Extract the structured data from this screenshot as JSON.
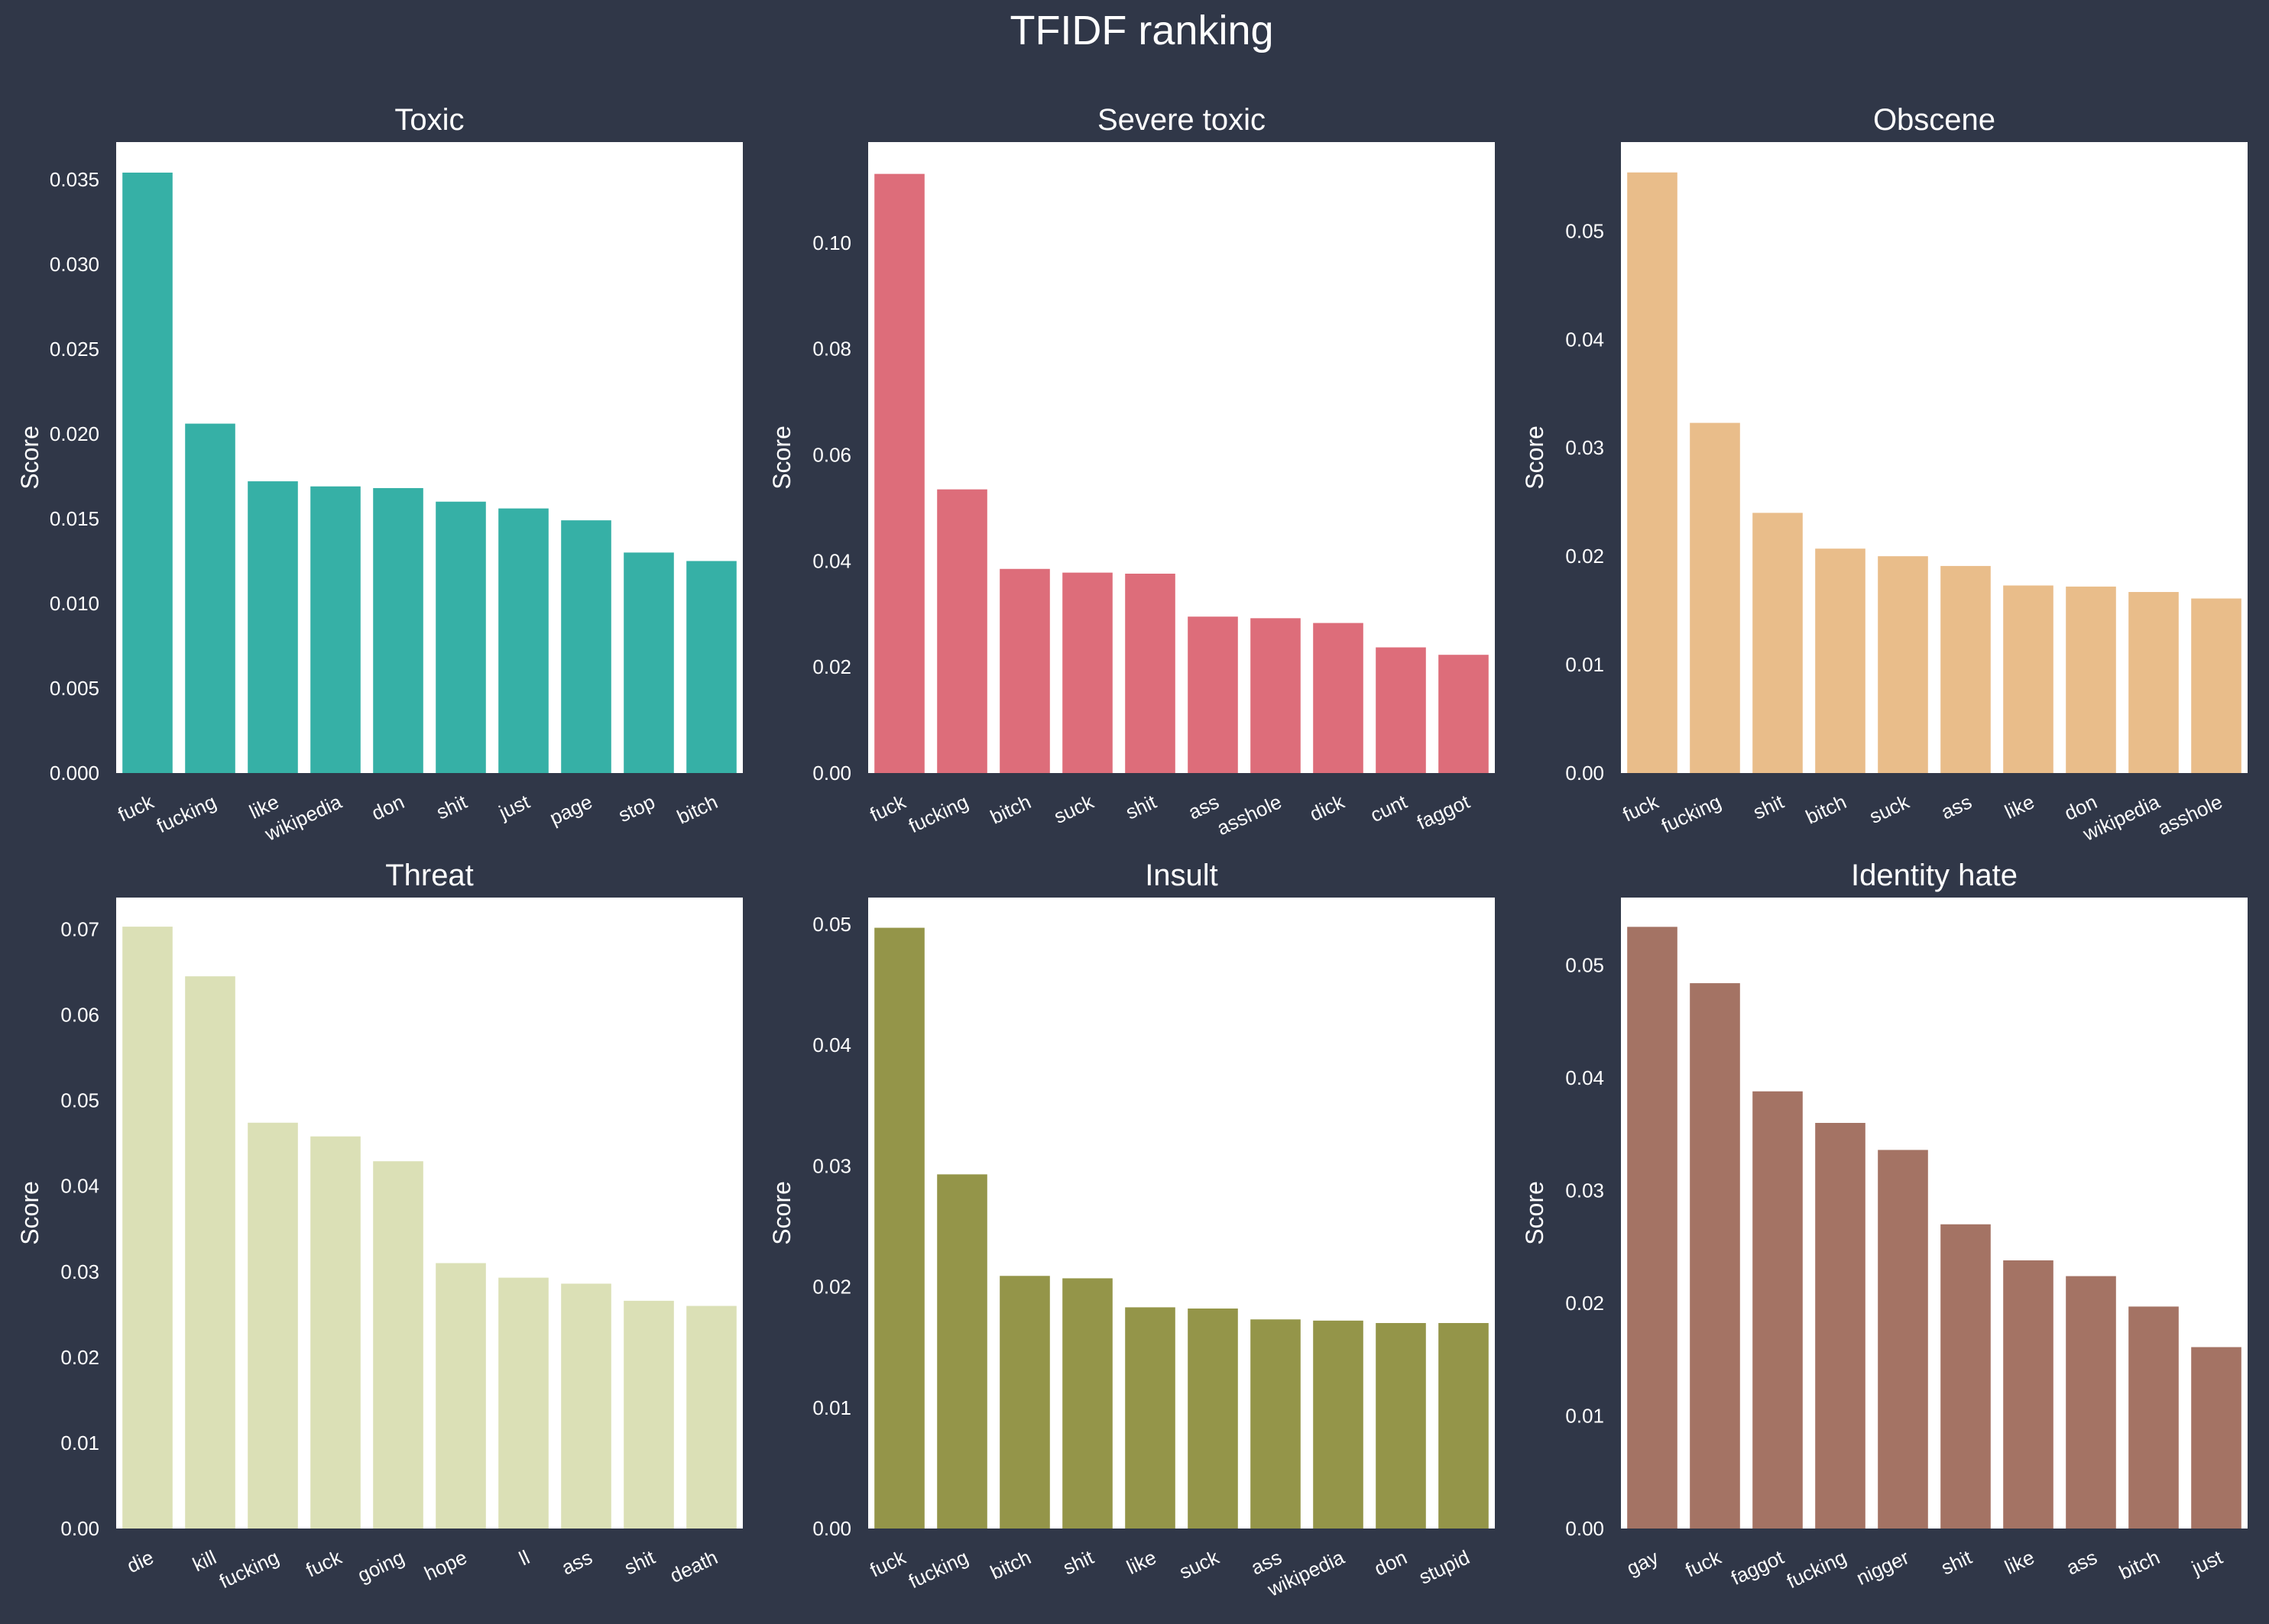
{
  "figure": {
    "title": "TFIDF ranking",
    "background": "#303748",
    "panel_background": "#ffffff",
    "text_color": "#ffffff"
  },
  "chart_data": [
    {
      "type": "bar",
      "title": "Toxic",
      "ylabel": "Score",
      "xlabel": "",
      "color": "#36b0a6",
      "ylim": [
        0,
        0.0372
      ],
      "yticks": [
        "0.000",
        "0.005",
        "0.010",
        "0.015",
        "0.020",
        "0.025",
        "0.030",
        "0.035"
      ],
      "yticks_values": [
        0,
        0.005,
        0.01,
        0.015,
        0.02,
        0.025,
        0.03,
        0.035
      ],
      "categories": [
        "fuck",
        "fucking",
        "like",
        "wikipedia",
        "don",
        "shit",
        "just",
        "page",
        "stop",
        "bitch"
      ],
      "values": [
        0.0354,
        0.0206,
        0.0172,
        0.0169,
        0.0168,
        0.016,
        0.0156,
        0.0149,
        0.013,
        0.0125
      ]
    },
    {
      "type": "bar",
      "title": "Severe toxic",
      "ylabel": "Score",
      "xlabel": "",
      "color": "#dd6d7a",
      "ylim": [
        0,
        0.119
      ],
      "yticks": [
        "0.00",
        "0.02",
        "0.04",
        "0.06",
        "0.08",
        "0.10"
      ],
      "yticks_values": [
        0,
        0.02,
        0.04,
        0.06,
        0.08,
        0.1
      ],
      "categories": [
        "fuck",
        "fucking",
        "bitch",
        "suck",
        "shit",
        "ass",
        "asshole",
        "dick",
        "cunt",
        "faggot"
      ],
      "values": [
        0.113,
        0.0535,
        0.0385,
        0.0378,
        0.0376,
        0.0295,
        0.0292,
        0.0283,
        0.0237,
        0.0223
      ]
    },
    {
      "type": "bar",
      "title": "Obscene",
      "ylabel": "Score",
      "xlabel": "",
      "color": "#e9bd8a",
      "ylim": [
        0,
        0.0582
      ],
      "yticks": [
        "0.00",
        "0.01",
        "0.02",
        "0.03",
        "0.04",
        "0.05"
      ],
      "yticks_values": [
        0,
        0.01,
        0.02,
        0.03,
        0.04,
        0.05
      ],
      "categories": [
        "fuck",
        "fucking",
        "shit",
        "bitch",
        "suck",
        "ass",
        "like",
        "don",
        "wikipedia",
        "asshole"
      ],
      "values": [
        0.0554,
        0.0323,
        0.024,
        0.0207,
        0.02,
        0.0191,
        0.0173,
        0.0172,
        0.0167,
        0.0161
      ]
    },
    {
      "type": "bar",
      "title": "Threat",
      "ylabel": "Score",
      "xlabel": "",
      "color": "#dbe0b6",
      "ylim": [
        0,
        0.0737
      ],
      "yticks": [
        "0.00",
        "0.01",
        "0.02",
        "0.03",
        "0.04",
        "0.05",
        "0.06",
        "0.07"
      ],
      "yticks_values": [
        0,
        0.01,
        0.02,
        0.03,
        0.04,
        0.05,
        0.06,
        0.07
      ],
      "categories": [
        "die",
        "kill",
        "fucking",
        "fuck",
        "going",
        "hope",
        "ll",
        "ass",
        "shit",
        "death"
      ],
      "values": [
        0.0703,
        0.0645,
        0.0474,
        0.0458,
        0.0429,
        0.031,
        0.0293,
        0.0286,
        0.0266,
        0.026
      ]
    },
    {
      "type": "bar",
      "title": "Insult",
      "ylabel": "Score",
      "xlabel": "",
      "color": "#949549",
      "ylim": [
        0,
        0.0522
      ],
      "yticks": [
        "0.00",
        "0.01",
        "0.02",
        "0.03",
        "0.04",
        "0.05"
      ],
      "yticks_values": [
        0,
        0.01,
        0.02,
        0.03,
        0.04,
        0.05
      ],
      "categories": [
        "fuck",
        "fucking",
        "bitch",
        "shit",
        "like",
        "suck",
        "ass",
        "wikipedia",
        "don",
        "stupid"
      ],
      "values": [
        0.0497,
        0.0293,
        0.0209,
        0.0207,
        0.0183,
        0.0182,
        0.0173,
        0.0172,
        0.017,
        0.017
      ]
    },
    {
      "type": "bar",
      "title": "Identity hate",
      "ylabel": "Score",
      "xlabel": "",
      "color": "#a47364",
      "ylim": [
        0,
        0.056
      ],
      "yticks": [
        "0.00",
        "0.01",
        "0.02",
        "0.03",
        "0.04",
        "0.05"
      ],
      "yticks_values": [
        0,
        0.01,
        0.02,
        0.03,
        0.04,
        0.05
      ],
      "categories": [
        "gay",
        "fuck",
        "faggot",
        "fucking",
        "nigger",
        "shit",
        "like",
        "ass",
        "bitch",
        "just"
      ],
      "values": [
        0.0534,
        0.0484,
        0.0388,
        0.036,
        0.0336,
        0.027,
        0.0238,
        0.0224,
        0.0197,
        0.0161
      ]
    }
  ]
}
